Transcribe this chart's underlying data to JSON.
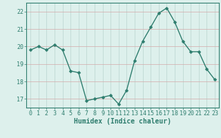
{
  "x": [
    0,
    1,
    2,
    3,
    4,
    5,
    6,
    7,
    8,
    9,
    10,
    11,
    12,
    13,
    14,
    15,
    16,
    17,
    18,
    19,
    20,
    21,
    22,
    23
  ],
  "y": [
    19.8,
    20.0,
    19.8,
    20.1,
    19.8,
    18.6,
    18.5,
    16.9,
    17.0,
    17.1,
    17.2,
    16.7,
    17.5,
    19.2,
    20.3,
    21.1,
    21.9,
    22.2,
    21.4,
    20.3,
    19.7,
    19.7,
    18.7,
    18.1
  ],
  "line_color": "#2e7d6e",
  "marker": "D",
  "marker_size": 2.5,
  "bg_color": "#ddf0ec",
  "grid_x_color": "#b8d4cf",
  "grid_y_color": "#d4a8a8",
  "xlabel": "Humidex (Indice chaleur)",
  "ylim": [
    16.5,
    22.5
  ],
  "xlim": [
    -0.5,
    23.5
  ],
  "yticks": [
    17,
    18,
    19,
    20,
    21,
    22
  ],
  "xticks": [
    0,
    1,
    2,
    3,
    4,
    5,
    6,
    7,
    8,
    9,
    10,
    11,
    12,
    13,
    14,
    15,
    16,
    17,
    18,
    19,
    20,
    21,
    22,
    23
  ],
  "tick_fontsize": 6,
  "label_fontsize": 7,
  "line_width": 1.0,
  "tick_color": "#2e7d6e"
}
